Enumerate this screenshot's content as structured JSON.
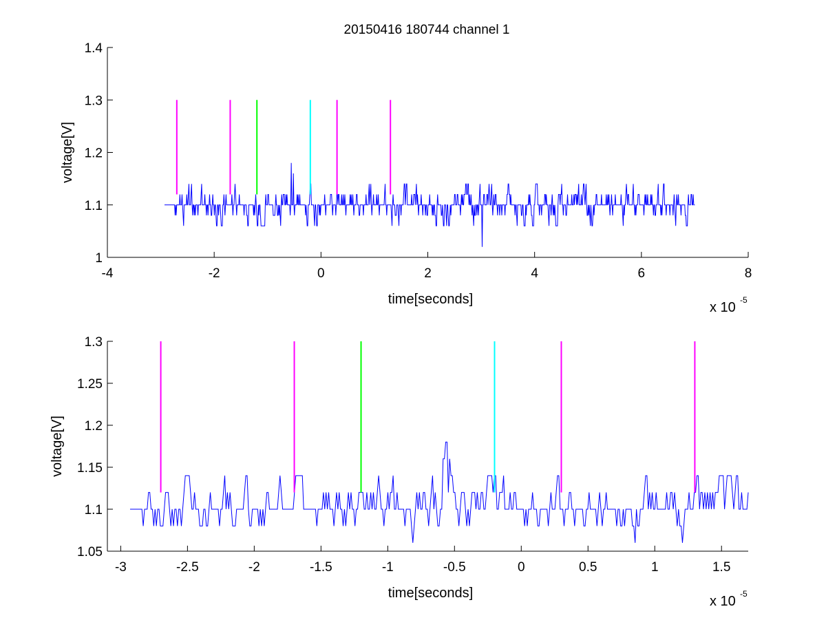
{
  "figure": {
    "title": "20150416 180744 channel 1"
  },
  "chart_data": [
    {
      "type": "line",
      "title": "20150416 180744 channel 1",
      "xlabel": "time[seconds]",
      "ylabel": "voltage[V]",
      "x_exponent_text": "x 10",
      "x_exponent_power": "-5",
      "xlim": [
        -4,
        8
      ],
      "ylim": [
        1.0,
        1.4
      ],
      "xticks": [
        -4,
        -2,
        0,
        2,
        4,
        6,
        8
      ],
      "xtick_labels": [
        "-4",
        "-2",
        "0",
        "2",
        "4",
        "6",
        "8"
      ],
      "yticks": [
        1.0,
        1.1,
        1.2,
        1.3,
        1.4
      ],
      "ytick_labels": [
        "1",
        "1.1",
        "1.2",
        "1.3",
        "1.4"
      ],
      "grid": false,
      "series": [
        {
          "color": "#0000ff",
          "x_range": [
            -2.93,
            7.0
          ],
          "baseline": 1.1,
          "spikes": [
            {
              "x": -0.56,
              "y": 1.18
            },
            {
              "x": -0.52,
              "y": 1.16
            },
            {
              "x": 3.02,
              "y": 1.02
            }
          ]
        }
      ],
      "markers": [
        {
          "x": -2.7,
          "y_from": 1.12,
          "y_to": 1.3,
          "color": "#ff00ff"
        },
        {
          "x": -1.7,
          "y_from": 1.12,
          "y_to": 1.3,
          "color": "#ff00ff"
        },
        {
          "x": -1.2,
          "y_from": 1.12,
          "y_to": 1.3,
          "color": "#00ff00"
        },
        {
          "x": -0.2,
          "y_from": 1.12,
          "y_to": 1.3,
          "color": "#00ffff"
        },
        {
          "x": 0.3,
          "y_from": 1.12,
          "y_to": 1.3,
          "color": "#ff00ff"
        },
        {
          "x": 1.3,
          "y_from": 1.12,
          "y_to": 1.3,
          "color": "#ff00ff"
        }
      ]
    },
    {
      "type": "line",
      "title": "",
      "xlabel": "time[seconds]",
      "ylabel": "voltage[V]",
      "x_exponent_text": "x 10",
      "x_exponent_power": "-5",
      "xlim": [
        -3.1,
        1.7
      ],
      "ylim": [
        1.05,
        1.3
      ],
      "xticks": [
        -3,
        -2.5,
        -2,
        -1.5,
        -1,
        -0.5,
        0,
        0.5,
        1,
        1.5
      ],
      "xtick_labels": [
        "-3",
        "-2.5",
        "-2",
        "-1.5",
        "-1",
        "-0.5",
        "0",
        "0.5",
        "1",
        "1.5"
      ],
      "yticks": [
        1.05,
        1.1,
        1.15,
        1.2,
        1.25,
        1.3
      ],
      "ytick_labels": [
        "1.05",
        "1.1",
        "1.15",
        "1.2",
        "1.25",
        "1.3"
      ],
      "grid": false,
      "series": [
        {
          "color": "#0000ff",
          "x_range": [
            -2.93,
            1.7
          ],
          "baseline": 1.1,
          "spikes": [
            {
              "x": -0.58,
              "y": 1.16
            },
            {
              "x": -0.56,
              "y": 1.18
            },
            {
              "x": -0.54,
              "y": 1.16
            }
          ]
        }
      ],
      "markers": [
        {
          "x": -2.7,
          "y_from": 1.12,
          "y_to": 1.3,
          "color": "#ff00ff"
        },
        {
          "x": -1.7,
          "y_from": 1.12,
          "y_to": 1.3,
          "color": "#ff00ff"
        },
        {
          "x": -1.2,
          "y_from": 1.12,
          "y_to": 1.3,
          "color": "#00ff00"
        },
        {
          "x": -0.2,
          "y_from": 1.12,
          "y_to": 1.3,
          "color": "#00ffff"
        },
        {
          "x": 0.3,
          "y_from": 1.12,
          "y_to": 1.3,
          "color": "#ff00ff"
        },
        {
          "x": 1.3,
          "y_from": 1.12,
          "y_to": 1.3,
          "color": "#ff00ff"
        }
      ]
    }
  ]
}
